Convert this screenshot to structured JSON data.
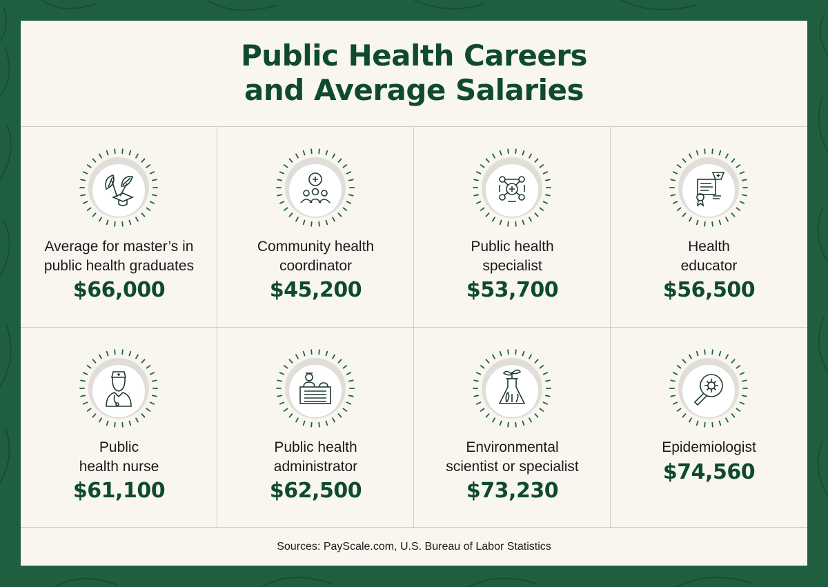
{
  "title_line1": "Public Health Careers",
  "title_line2": "and Average Salaries",
  "colors": {
    "accent": "#0f4a2f",
    "background": "#1f5f40",
    "card": "#f8f6ef"
  },
  "careers": [
    {
      "line1": "Average for master’s in",
      "line2": "public health graduates",
      "salary": "$66,000",
      "icon": "leaves-graduation-cap-icon"
    },
    {
      "line1": "Community health",
      "line2": "coordinator",
      "salary": "$45,200",
      "icon": "community-group-icon"
    },
    {
      "line1": "Public health",
      "line2": "specialist",
      "salary": "$53,700",
      "icon": "health-network-icon"
    },
    {
      "line1": "Health",
      "line2": "educator",
      "salary": "$56,500",
      "icon": "certificate-icon"
    },
    {
      "line1": "Public",
      "line2": "health nurse",
      "salary": "$61,100",
      "icon": "nurse-icon"
    },
    {
      "line1": "Public health",
      "line2": "administrator",
      "salary": "$62,500",
      "icon": "administrator-desk-icon"
    },
    {
      "line1": "Environmental",
      "line2": "scientist or specialist",
      "salary": "$73,230",
      "icon": "flask-plant-icon"
    },
    {
      "line1": "Epidemiologist",
      "line2": "",
      "salary": "$74,560",
      "icon": "magnifier-virus-icon"
    }
  ],
  "sources": "Sources: PayScale.com, U.S. Bureau of Labor Statistics"
}
